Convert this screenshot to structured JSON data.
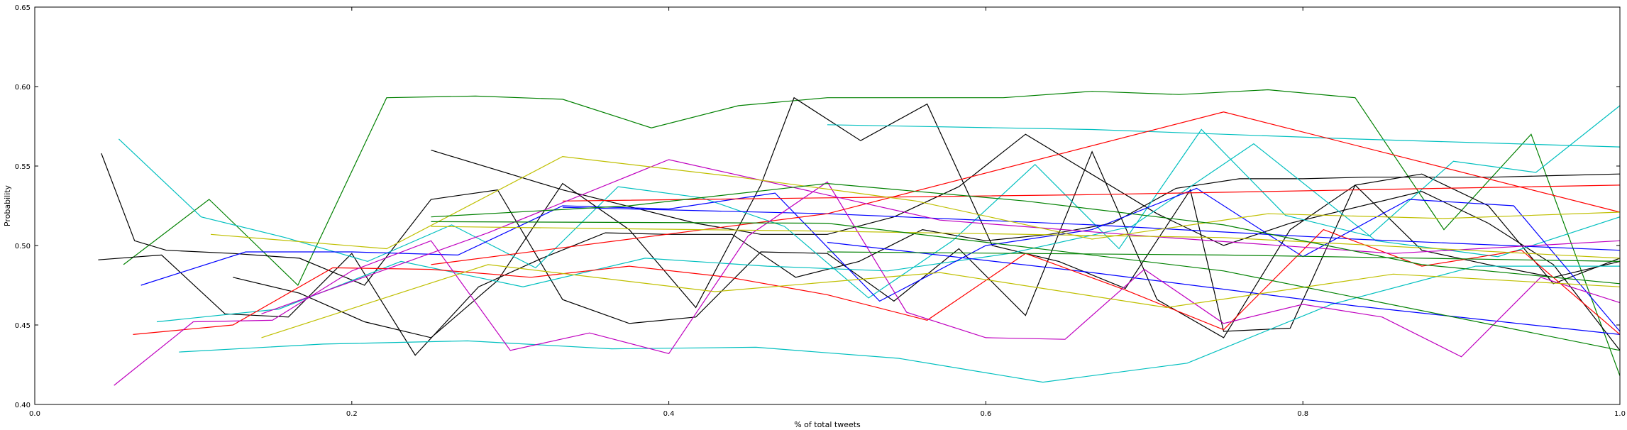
{
  "chart_data": {
    "type": "line",
    "xlabel": "% of total tweets",
    "ylabel": "Probability",
    "xlim": [
      0.0,
      1.0
    ],
    "ylim": [
      0.4,
      0.65
    ],
    "xticks": [
      "0.0",
      "0.2",
      "0.4",
      "0.6",
      "0.8",
      "1.0"
    ],
    "yticks": [
      "0.40",
      "0.45",
      "0.50",
      "0.55",
      "0.60",
      "0.65"
    ],
    "grid": false,
    "legend": "none",
    "series": [
      {
        "color": "#008000",
        "x": [
          0.056,
          0.11,
          0.166,
          0.222,
          0.278,
          0.333,
          0.389,
          0.444,
          0.5,
          0.556,
          0.611,
          0.667,
          0.722,
          0.778,
          0.833,
          0.889,
          0.944,
          1.0
        ],
        "y": [
          0.488,
          0.529,
          0.475,
          0.593,
          0.594,
          0.592,
          0.574,
          0.588,
          0.593,
          0.593,
          0.593,
          0.597,
          0.595,
          0.598,
          0.593,
          0.51,
          0.57,
          0.418
        ]
      },
      {
        "color": "#000000",
        "x": [
          0.042,
          0.063,
          0.083,
          0.125,
          0.167,
          0.208,
          0.25,
          0.292,
          0.333,
          0.375,
          0.417,
          0.458,
          0.5,
          0.542,
          0.583,
          0.625,
          0.667,
          0.708,
          0.75,
          0.792,
          0.833,
          0.875,
          0.917,
          0.958,
          1.0
        ],
        "y": [
          0.558,
          0.503,
          0.497,
          0.495,
          0.492,
          0.475,
          0.529,
          0.535,
          0.466,
          0.451,
          0.455,
          0.496,
          0.495,
          0.465,
          0.498,
          0.456,
          0.559,
          0.466,
          0.442,
          0.51,
          0.538,
          0.497,
          0.488,
          0.48,
          0.49
        ]
      },
      {
        "color": "#000000",
        "x": [
          0.25,
          0.333,
          0.417,
          0.458,
          0.5,
          0.542,
          0.583,
          0.625,
          0.708,
          0.75,
          0.792,
          0.875,
          0.917,
          0.958,
          1.0
        ],
        "y": [
          0.56,
          0.535,
          0.514,
          0.507,
          0.507,
          0.518,
          0.537,
          0.57,
          0.52,
          0.5,
          0.514,
          0.534,
          0.514,
          0.488,
          0.434
        ]
      },
      {
        "color": "#000000",
        "x": [
          0.125,
          0.167,
          0.208,
          0.25,
          0.292,
          0.333,
          0.375,
          0.417,
          0.458,
          0.479,
          0.521,
          0.563,
          0.604,
          0.646,
          0.688,
          0.729,
          0.75,
          0.792,
          0.833,
          0.875,
          0.917,
          0.958,
          1.0
        ],
        "y": [
          0.48,
          0.47,
          0.452,
          0.442,
          0.478,
          0.539,
          0.51,
          0.461,
          0.538,
          0.593,
          0.566,
          0.589,
          0.5,
          0.49,
          0.473,
          0.535,
          0.446,
          0.448,
          0.538,
          0.545,
          0.525,
          0.476,
          0.492
        ]
      },
      {
        "color": "#000000",
        "x": [
          0.04,
          0.08,
          0.12,
          0.16,
          0.2,
          0.24,
          0.28,
          0.32,
          0.36,
          0.4,
          0.44,
          0.48,
          0.52,
          0.56,
          0.6,
          0.64,
          0.68,
          0.72,
          0.76,
          0.8,
          0.84,
          0.88,
          0.92,
          0.96,
          1.0
        ],
        "y": [
          0.491,
          0.494,
          0.457,
          0.455,
          0.495,
          0.431,
          0.474,
          0.492,
          0.508,
          0.507,
          0.507,
          0.48,
          0.49,
          0.51,
          0.503,
          0.507,
          0.514,
          0.536,
          0.542,
          0.542,
          0.543,
          0.543,
          0.543,
          0.544,
          0.545
        ]
      },
      {
        "color": "#00bfbf",
        "x": [
          0.053,
          0.105,
          0.158,
          0.21,
          0.263,
          0.316,
          0.368,
          0.421,
          0.473,
          0.526,
          0.579,
          0.631,
          0.684,
          0.736,
          0.789,
          0.842,
          0.895,
          0.947,
          1.0
        ],
        "y": [
          0.567,
          0.518,
          0.505,
          0.49,
          0.513,
          0.486,
          0.537,
          0.53,
          0.512,
          0.467,
          0.503,
          0.551,
          0.498,
          0.573,
          0.519,
          0.506,
          0.553,
          0.546,
          0.588
        ]
      },
      {
        "color": "#00bfbf",
        "x": [
          0.5,
          0.667,
          0.833,
          1.0
        ],
        "y": [
          0.576,
          0.573,
          0.567,
          0.562
        ]
      },
      {
        "color": "#00bfbf",
        "x": [
          0.077,
          0.154,
          0.231,
          0.308,
          0.385,
          0.462,
          0.538,
          0.615,
          0.692,
          0.769,
          0.846,
          0.923,
          1.0
        ],
        "y": [
          0.452,
          0.46,
          0.49,
          0.474,
          0.492,
          0.487,
          0.484,
          0.495,
          0.512,
          0.564,
          0.503,
          0.493,
          0.518
        ]
      },
      {
        "color": "#00bfbf",
        "x": [
          0.091,
          0.182,
          0.273,
          0.364,
          0.455,
          0.545,
          0.636,
          0.727,
          0.818,
          0.909,
          1.0
        ],
        "y": [
          0.433,
          0.438,
          0.44,
          0.435,
          0.436,
          0.429,
          0.414,
          0.426,
          0.463,
          0.487,
          0.487
        ]
      },
      {
        "color": "#0000ff",
        "x": [
          0.067,
          0.133,
          0.2,
          0.267,
          0.333,
          0.4,
          0.467,
          0.533,
          0.6,
          0.667,
          0.733,
          0.8,
          0.867,
          0.933,
          1.0
        ],
        "y": [
          0.475,
          0.496,
          0.496,
          0.494,
          0.525,
          0.523,
          0.533,
          0.465,
          0.5,
          0.51,
          0.536,
          0.493,
          0.529,
          0.525,
          0.446
        ]
      },
      {
        "color": "#0000ff",
        "x": [
          0.333,
          0.5,
          0.667,
          0.833,
          1.0
        ],
        "y": [
          0.524,
          0.52,
          0.513,
          0.504,
          0.497
        ]
      },
      {
        "color": "#0000ff",
        "x": [
          0.5,
          0.667,
          0.833,
          1.0
        ],
        "y": [
          0.502,
          0.483,
          0.462,
          0.444
        ]
      },
      {
        "color": "#ff0000",
        "x": [
          0.062,
          0.125,
          0.188,
          0.25,
          0.313,
          0.375,
          0.438,
          0.5,
          0.563,
          0.625,
          0.688,
          0.75,
          0.813,
          0.875,
          0.938,
          1.0
        ],
        "y": [
          0.444,
          0.45,
          0.486,
          0.485,
          0.48,
          0.487,
          0.48,
          0.469,
          0.453,
          0.495,
          0.472,
          0.447,
          0.51,
          0.487,
          0.497,
          0.444
        ]
      },
      {
        "color": "#ff0000",
        "x": [
          0.25,
          0.5,
          0.75,
          1.0
        ],
        "y": [
          0.488,
          0.52,
          0.584,
          0.521
        ]
      },
      {
        "color": "#ff0000",
        "x": [
          0.333,
          0.5,
          0.667,
          0.833,
          1.0
        ],
        "y": [
          0.528,
          0.53,
          0.532,
          0.535,
          0.538
        ]
      },
      {
        "color": "#bf00bf",
        "x": [
          0.05,
          0.1,
          0.15,
          0.2,
          0.25,
          0.3,
          0.35,
          0.4,
          0.45,
          0.5,
          0.55,
          0.6,
          0.65,
          0.7,
          0.75,
          0.8,
          0.85,
          0.9,
          0.95,
          1.0
        ],
        "y": [
          0.412,
          0.452,
          0.453,
          0.484,
          0.503,
          0.434,
          0.445,
          0.432,
          0.506,
          0.54,
          0.458,
          0.442,
          0.441,
          0.485,
          0.451,
          0.463,
          0.455,
          0.43,
          0.48,
          0.464
        ]
      },
      {
        "color": "#bf00bf",
        "x": [
          0.143,
          0.286,
          0.4,
          0.571,
          0.714,
          0.857,
          1.0
        ],
        "y": [
          0.457,
          0.508,
          0.554,
          0.516,
          0.505,
          0.495,
          0.503
        ]
      },
      {
        "color": "#bfbf00",
        "x": [
          0.111,
          0.222,
          0.333,
          0.444,
          0.556,
          0.667,
          0.778,
          0.889,
          1.0
        ],
        "y": [
          0.507,
          0.498,
          0.556,
          0.543,
          0.528,
          0.504,
          0.52,
          0.517,
          0.521
        ]
      },
      {
        "color": "#bfbf00",
        "x": [
          0.143,
          0.286,
          0.429,
          0.571,
          0.714,
          0.857,
          1.0
        ],
        "y": [
          0.442,
          0.488,
          0.471,
          0.483,
          0.461,
          0.482,
          0.474
        ]
      },
      {
        "color": "#bfbf00",
        "x": [
          0.25,
          0.5,
          0.75,
          1.0
        ],
        "y": [
          0.512,
          0.509,
          0.505,
          0.492
        ]
      },
      {
        "color": "#008000",
        "x": [
          0.25,
          0.375,
          0.5,
          0.625,
          0.75,
          0.875,
          1.0
        ],
        "y": [
          0.518,
          0.525,
          0.539,
          0.528,
          0.513,
          0.488,
          0.476
        ]
      },
      {
        "color": "#008000",
        "x": [
          0.25,
          0.5,
          0.75,
          1.0
        ],
        "y": [
          0.515,
          0.514,
          0.484,
          0.434
        ]
      },
      {
        "color": "#008000",
        "x": [
          0.5,
          0.75,
          1.0
        ],
        "y": [
          0.496,
          0.494,
          0.49
        ]
      }
    ]
  }
}
